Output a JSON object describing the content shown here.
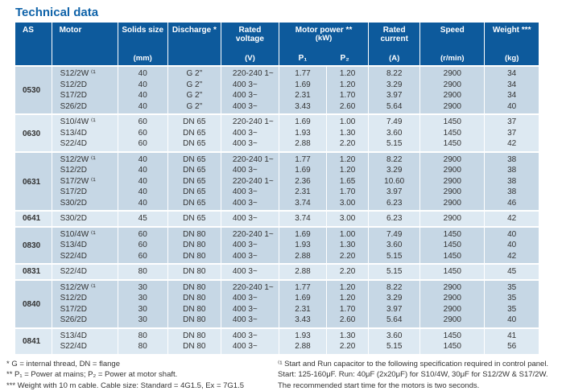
{
  "title": "Technical data",
  "colors": {
    "title_blue": "#0f63a9",
    "header_bg": "#0d5a9c",
    "row_dark": "#c6d7e5",
    "row_light": "#dde9f2",
    "header_text": "#ffffff",
    "body_text": "#333333"
  },
  "table": {
    "headers": {
      "as": "AS",
      "motor": "Motor",
      "solids_label": "Solids size",
      "solids_unit": "(mm)",
      "discharge_label": "Discharge *",
      "voltage_label": "Rated\nvoltage",
      "voltage_unit": "(V)",
      "power_label": "Motor power **",
      "power_unit": "(kW)",
      "p1": "P₁",
      "p2": "P₂",
      "current_label": "Rated\ncurrent",
      "current_unit": "(A)",
      "speed_label": "Speed",
      "speed_unit": "(r/min)",
      "weight_label": "Weight ***",
      "weight_unit": "(kg)"
    },
    "groups": [
      {
        "as": "0530",
        "rows": [
          {
            "motor": "S12/2W ⁽¹",
            "solids": "40",
            "discharge": "G 2\"",
            "voltage": "220-240 1~",
            "p1": "1.77",
            "p2": "1.20",
            "current": "8.22",
            "speed": "2900",
            "weight": "34"
          },
          {
            "motor": "S12/2D",
            "solids": "40",
            "discharge": "G 2\"",
            "voltage": "400 3~",
            "p1": "1.69",
            "p2": "1.20",
            "current": "3.29",
            "speed": "2900",
            "weight": "34"
          },
          {
            "motor": "S17/2D",
            "solids": "40",
            "discharge": "G 2\"",
            "voltage": "400 3~",
            "p1": "2.31",
            "p2": "1.70",
            "current": "3.97",
            "speed": "2900",
            "weight": "34"
          },
          {
            "motor": "S26/2D",
            "solids": "40",
            "discharge": "G 2\"",
            "voltage": "400 3~",
            "p1": "3.43",
            "p2": "2.60",
            "current": "5.64",
            "speed": "2900",
            "weight": "40"
          }
        ]
      },
      {
        "as": "0630",
        "rows": [
          {
            "motor": "S10/4W ⁽¹",
            "solids": "60",
            "discharge": "DN 65",
            "voltage": "220-240 1~",
            "p1": "1.69",
            "p2": "1.00",
            "current": "7.49",
            "speed": "1450",
            "weight": "37"
          },
          {
            "motor": "S13/4D",
            "solids": "60",
            "discharge": "DN 65",
            "voltage": "400 3~",
            "p1": "1.93",
            "p2": "1.30",
            "current": "3.60",
            "speed": "1450",
            "weight": "37"
          },
          {
            "motor": "S22/4D",
            "solids": "60",
            "discharge": "DN 65",
            "voltage": "400 3~",
            "p1": "2.88",
            "p2": "2.20",
            "current": "5.15",
            "speed": "1450",
            "weight": "42"
          }
        ]
      },
      {
        "as": "0631",
        "rows": [
          {
            "motor": "S12/2W ⁽¹",
            "solids": "40",
            "discharge": "DN 65",
            "voltage": "220-240 1~",
            "p1": "1.77",
            "p2": "1.20",
            "current": "8.22",
            "speed": "2900",
            "weight": "38"
          },
          {
            "motor": "S12/2D",
            "solids": "40",
            "discharge": "DN 65",
            "voltage": "400 3~",
            "p1": "1.69",
            "p2": "1.20",
            "current": "3.29",
            "speed": "2900",
            "weight": "38"
          },
          {
            "motor": "S17/2W ⁽¹",
            "solids": "40",
            "discharge": "DN 65",
            "voltage": "220-240 1~",
            "p1": "2.36",
            "p2": "1.65",
            "current": "10.60",
            "speed": "2900",
            "weight": "38"
          },
          {
            "motor": "S17/2D",
            "solids": "40",
            "discharge": "DN 65",
            "voltage": "400 3~",
            "p1": "2.31",
            "p2": "1.70",
            "current": "3.97",
            "speed": "2900",
            "weight": "38"
          },
          {
            "motor": "S30/2D",
            "solids": "40",
            "discharge": "DN 65",
            "voltage": "400 3~",
            "p1": "3.74",
            "p2": "3.00",
            "current": "6.23",
            "speed": "2900",
            "weight": "46"
          }
        ]
      },
      {
        "as": "0641",
        "rows": [
          {
            "motor": "S30/2D",
            "solids": "45",
            "discharge": "DN 65",
            "voltage": "400 3~",
            "p1": "3.74",
            "p2": "3.00",
            "current": "6.23",
            "speed": "2900",
            "weight": "42"
          }
        ]
      },
      {
        "as": "0830",
        "rows": [
          {
            "motor": "S10/4W ⁽¹",
            "solids": "60",
            "discharge": "DN 80",
            "voltage": "220-240 1~",
            "p1": "1.69",
            "p2": "1.00",
            "current": "7.49",
            "speed": "1450",
            "weight": "40"
          },
          {
            "motor": "S13/4D",
            "solids": "60",
            "discharge": "DN 80",
            "voltage": "400 3~",
            "p1": "1.93",
            "p2": "1.30",
            "current": "3.60",
            "speed": "1450",
            "weight": "40"
          },
          {
            "motor": "S22/4D",
            "solids": "60",
            "discharge": "DN 80",
            "voltage": "400 3~",
            "p1": "2.88",
            "p2": "2.20",
            "current": "5.15",
            "speed": "1450",
            "weight": "42"
          }
        ]
      },
      {
        "as": "0831",
        "rows": [
          {
            "motor": "S22/4D",
            "solids": "80",
            "discharge": "DN 80",
            "voltage": "400 3~",
            "p1": "2.88",
            "p2": "2.20",
            "current": "5.15",
            "speed": "1450",
            "weight": "45"
          }
        ]
      },
      {
        "as": "0840",
        "rows": [
          {
            "motor": "S12/2W ⁽¹",
            "solids": "30",
            "discharge": "DN 80",
            "voltage": "220-240 1~",
            "p1": "1.77",
            "p2": "1.20",
            "current": "8.22",
            "speed": "2900",
            "weight": "35"
          },
          {
            "motor": "S12/2D",
            "solids": "30",
            "discharge": "DN 80",
            "voltage": "400 3~",
            "p1": "1.69",
            "p2": "1.20",
            "current": "3.29",
            "speed": "2900",
            "weight": "35"
          },
          {
            "motor": "S17/2D",
            "solids": "30",
            "discharge": "DN 80",
            "voltage": "400 3~",
            "p1": "2.31",
            "p2": "1.70",
            "current": "3.97",
            "speed": "2900",
            "weight": "35"
          },
          {
            "motor": "S26/2D",
            "solids": "30",
            "discharge": "DN 80",
            "voltage": "400 3~",
            "p1": "3.43",
            "p2": "2.60",
            "current": "5.64",
            "speed": "2900",
            "weight": "40"
          }
        ]
      },
      {
        "as": "0841",
        "rows": [
          {
            "motor": "S13/4D",
            "solids": "80",
            "discharge": "DN 80",
            "voltage": "400 3~",
            "p1": "1.93",
            "p2": "1.30",
            "current": "3.60",
            "speed": "1450",
            "weight": "41"
          },
          {
            "motor": "S22/4D",
            "solids": "80",
            "discharge": "DN 80",
            "voltage": "400 3~",
            "p1": "2.88",
            "p2": "2.20",
            "current": "5.15",
            "speed": "1450",
            "weight": "56"
          }
        ]
      }
    ]
  },
  "footnotes": {
    "left": [
      "* G = internal thread, DN = flange",
      "** P₁ = Power at mains; P₂ = Power at motor shaft.",
      "*** Weight with 10 m cable. Cable size: Standard = 4G1.5, Ex = 7G1.5"
    ],
    "right": [
      "⁽¹ Start and Run capacitor to the following specification required in control panel.",
      "Start: 125-160μF. Run: 40μF (2x20μF) for S10/4W, 30μF for S12/2W & S17/2W.",
      "The recommended start time for the motors is two seconds."
    ]
  }
}
